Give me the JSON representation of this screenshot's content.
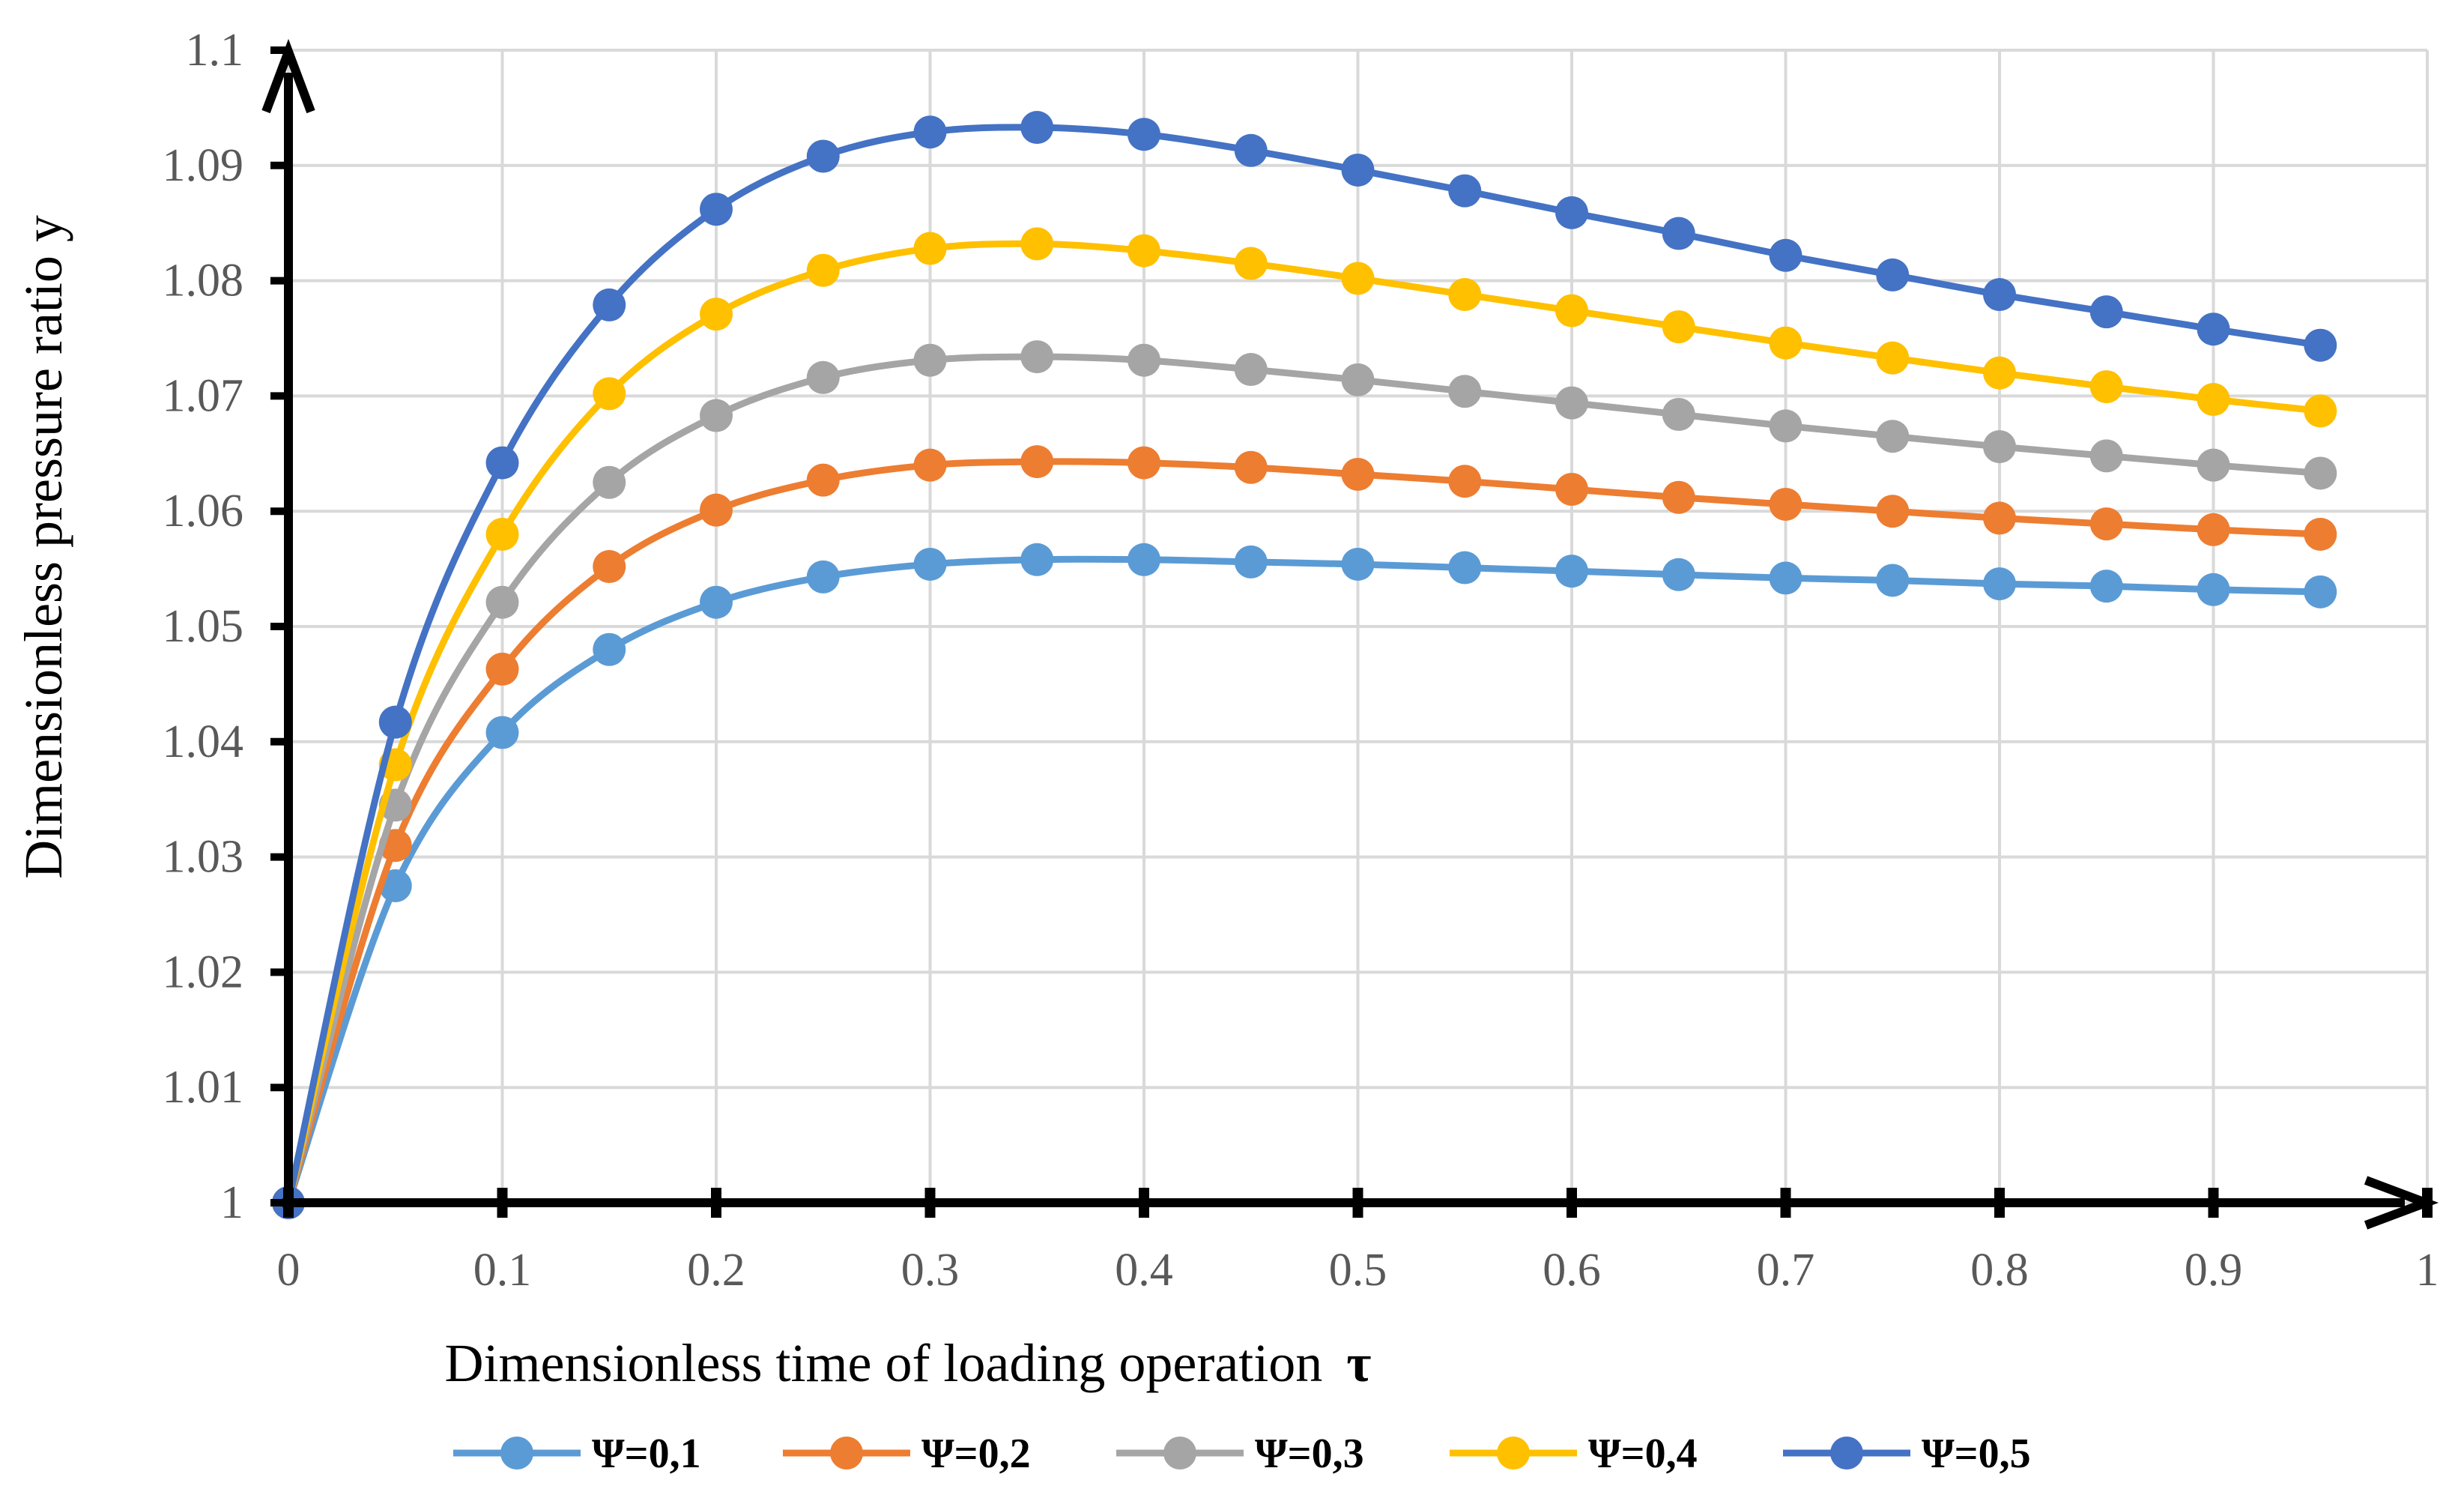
{
  "chart_data": {
    "type": "line",
    "title": "",
    "xlabel": "Dimensionless time of loading operation",
    "xlabel_symbol": "τ",
    "ylabel": "Dimensionless pressure ratio y",
    "xlim": [
      0,
      1
    ],
    "ylim": [
      1,
      1.1
    ],
    "x_ticks": [
      "0",
      "0.1",
      "0.2",
      "0.3",
      "0.4",
      "0.5",
      "0.6",
      "0.7",
      "0.8",
      "0.9",
      "1"
    ],
    "y_ticks": [
      "1",
      "1.01",
      "1.02",
      "1.03",
      "1.04",
      "1.05",
      "1.06",
      "1.07",
      "1.08",
      "1.09",
      "1.1"
    ],
    "x": [
      0,
      0.05,
      0.1,
      0.15,
      0.2,
      0.25,
      0.3,
      0.35,
      0.4,
      0.45,
      0.5,
      0.55,
      0.6,
      0.65,
      0.7,
      0.75,
      0.8,
      0.85,
      0.9,
      0.95
    ],
    "grid": true,
    "legend_position": "bottom",
    "series": [
      {
        "name": "Ψ=0,1",
        "color": "#5B9BD5",
        "values": [
          1.0,
          1.0275,
          1.0408,
          1.048,
          1.0521,
          1.0543,
          1.0554,
          1.0558,
          1.0558,
          1.0556,
          1.0554,
          1.0551,
          1.0548,
          1.0545,
          1.0542,
          1.054,
          1.0537,
          1.0535,
          1.0532,
          1.053
        ]
      },
      {
        "name": "Ψ=0,2",
        "color": "#ED7D31",
        "values": [
          1.0,
          1.031,
          1.0463,
          1.0552,
          1.0601,
          1.0627,
          1.064,
          1.0643,
          1.0642,
          1.0638,
          1.0632,
          1.0626,
          1.0619,
          1.0612,
          1.0606,
          1.06,
          1.0594,
          1.0589,
          1.0584,
          1.058
        ]
      },
      {
        "name": "Ψ=0,3",
        "color": "#A5A5A5",
        "values": [
          1.0,
          1.0345,
          1.0521,
          1.0625,
          1.0683,
          1.0716,
          1.0731,
          1.0734,
          1.0731,
          1.0723,
          1.0714,
          1.0704,
          1.0694,
          1.0684,
          1.0674,
          1.0665,
          1.0656,
          1.0648,
          1.064,
          1.0633
        ]
      },
      {
        "name": "Ψ=0,4",
        "color": "#FFC000",
        "values": [
          1.0,
          1.038,
          1.058,
          1.0702,
          1.0771,
          1.0809,
          1.0828,
          1.0832,
          1.0826,
          1.0815,
          1.0802,
          1.0788,
          1.0774,
          1.076,
          1.0746,
          1.0733,
          1.072,
          1.0708,
          1.0697,
          1.0687
        ]
      },
      {
        "name": "Ψ=0,5",
        "color": "#4472C4",
        "values": [
          1.0,
          1.0417,
          1.0642,
          1.0779,
          1.0862,
          1.0908,
          1.0929,
          1.0933,
          1.0927,
          1.0913,
          1.0896,
          1.0878,
          1.0859,
          1.0841,
          1.0822,
          1.0805,
          1.0788,
          1.0773,
          1.0758,
          1.0744
        ]
      }
    ]
  }
}
